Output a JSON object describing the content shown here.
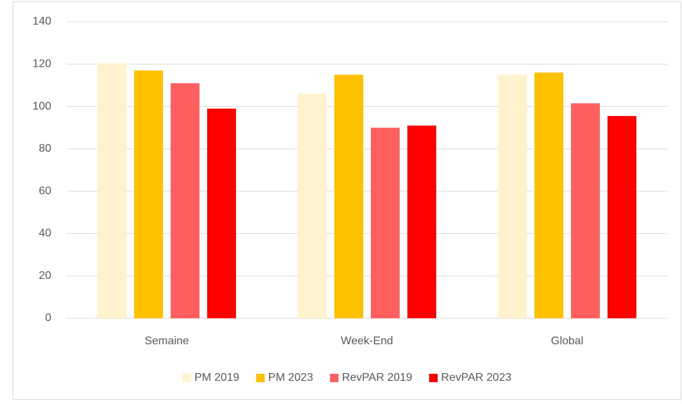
{
  "chart_data": {
    "type": "bar",
    "categories": [
      "Semaine",
      "Week-End",
      "Global"
    ],
    "series": [
      {
        "name": "PM 2019",
        "color": "#FFF2CC",
        "values": [
          120.5,
          106,
          115
        ]
      },
      {
        "name": "PM 2023",
        "color": "#FFC000",
        "values": [
          117,
          115,
          116
        ]
      },
      {
        "name": "RevPAR 2019",
        "color": "#FF5F5F",
        "values": [
          111,
          90,
          101.5
        ]
      },
      {
        "name": "RevPAR 2023",
        "color": "#FF0000",
        "values": [
          99,
          91,
          95.5
        ]
      }
    ],
    "ylim": [
      0,
      140
    ],
    "yticks": [
      0,
      20,
      40,
      60,
      80,
      100,
      120,
      140
    ],
    "grid": true,
    "legend": "bottom"
  }
}
